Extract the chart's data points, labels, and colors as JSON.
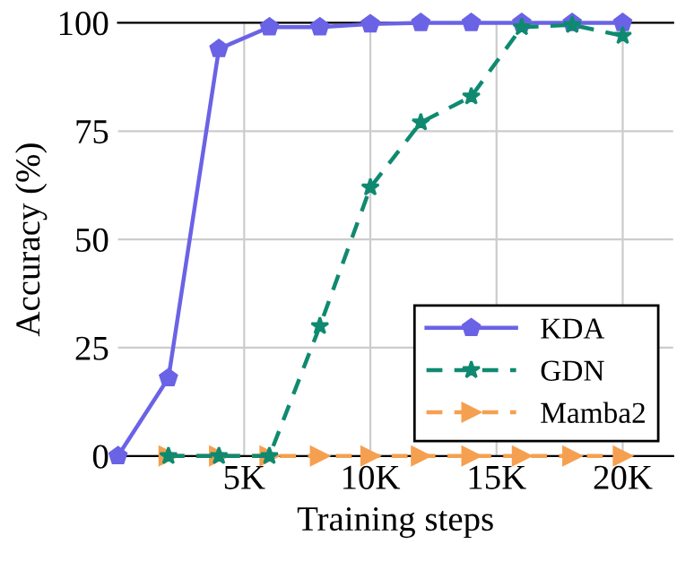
{
  "chart_data": {
    "type": "line",
    "xlabel": "Training steps",
    "ylabel": "Accuracy (%)",
    "xlim": [
      0,
      22000
    ],
    "ylim": [
      0,
      100
    ],
    "xticks": [
      {
        "value": 5000,
        "label": "5K"
      },
      {
        "value": 10000,
        "label": "10K"
      },
      {
        "value": 15000,
        "label": "15K"
      },
      {
        "value": 20000,
        "label": "20K"
      }
    ],
    "yticks": [
      0,
      25,
      50,
      75,
      100
    ],
    "grid": true,
    "legend": "bottom right",
    "series": [
      {
        "name": "KDA",
        "color": "#6a63e6",
        "marker": "circle",
        "line_style": "solid",
        "x": [
          0,
          2000,
          4000,
          6000,
          8000,
          10000,
          12000,
          14000,
          16000,
          18000,
          20000
        ],
        "values": [
          0,
          18,
          94,
          99,
          99,
          99.7,
          100,
          100,
          100,
          100,
          100
        ]
      },
      {
        "name": "GDN",
        "color": "#0f8a70",
        "marker": "star",
        "line_style": "dashed",
        "x": [
          2000,
          4000,
          6000,
          8000,
          10000,
          12000,
          14000,
          16000,
          18000,
          20000
        ],
        "values": [
          0,
          0,
          0,
          30,
          62,
          77,
          83,
          99,
          99.5,
          97
        ]
      },
      {
        "name": "Mamba2",
        "color": "#f5a050",
        "marker": "triangle",
        "line_style": "dashed",
        "x": [
          2000,
          4000,
          6000,
          8000,
          10000,
          12000,
          14000,
          16000,
          18000,
          20000
        ],
        "values": [
          0,
          0,
          0,
          0,
          0,
          0,
          0,
          0,
          0,
          0
        ]
      }
    ]
  }
}
